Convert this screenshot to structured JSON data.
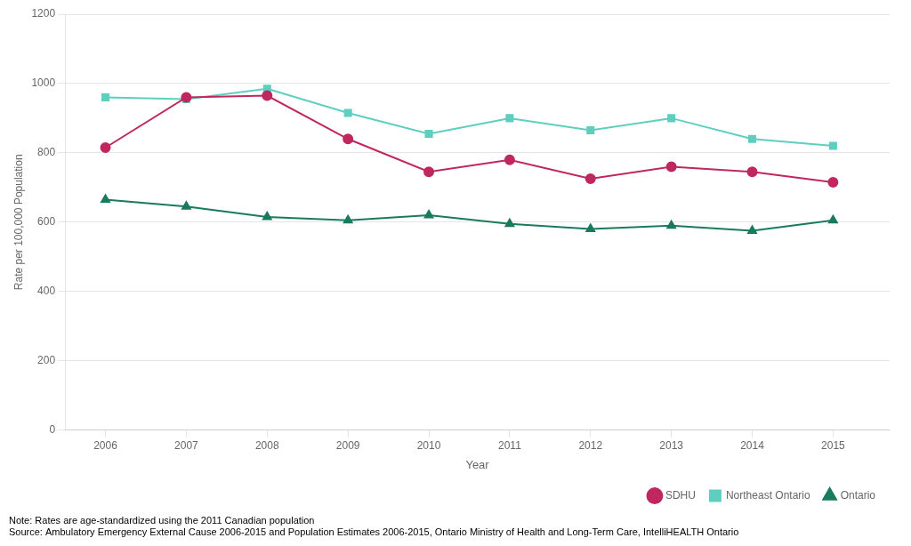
{
  "chart_data": {
    "type": "line",
    "x": [
      2006,
      2007,
      2008,
      2009,
      2010,
      2011,
      2012,
      2013,
      2014,
      2015
    ],
    "xlim": [
      2005.5,
      2015.7
    ],
    "xticks": [
      2006,
      2007,
      2008,
      2009,
      2010,
      2011,
      2012,
      2013,
      2014,
      2015
    ],
    "xlabel": "Year",
    "ylabel": "Rate per 100,000 Population",
    "ylim": [
      0,
      1200
    ],
    "yticks": [
      0,
      200,
      400,
      600,
      800,
      1000,
      1200
    ],
    "grid": "y",
    "legend": "lower right",
    "series": [
      {
        "name": "SDHU",
        "color": "#c0275e",
        "marker": "circle",
        "values": [
          815,
          960,
          965,
          840,
          745,
          780,
          725,
          760,
          745,
          715
        ]
      },
      {
        "name": "Northeast Ontario",
        "color": "#5ecfbf",
        "marker": "square",
        "values": [
          960,
          955,
          985,
          915,
          855,
          900,
          865,
          900,
          840,
          820
        ]
      },
      {
        "name": "Ontario",
        "color": "#1a7a5e",
        "marker": "triangle",
        "values": [
          665,
          645,
          615,
          605,
          620,
          595,
          580,
          590,
          575,
          605
        ]
      }
    ],
    "annotations": [
      "Note: Rates are age-standardized using the 2011 Canadian population",
      "Source: Ambulatory Emergency External Cause 2006-2015 and Population Estimates 2006-2015, Ontario Ministry of Health and Long-Term Care, IntelliHEALTH Ontario"
    ]
  }
}
